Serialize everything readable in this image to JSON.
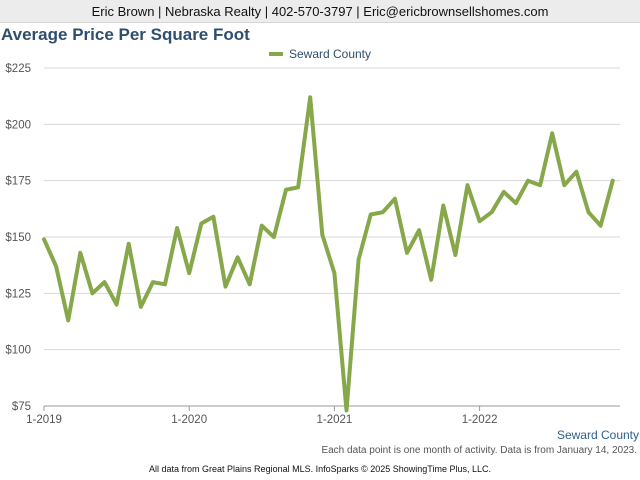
{
  "header": {
    "contact": "Eric Brown | Nebraska Realty | 402-570-3797 | Eric@ericbrownsellshomes.com"
  },
  "colors": {
    "series": "#86a84b",
    "title": "#2f4e6e"
  },
  "chart_data": {
    "type": "line",
    "title": "Average Price Per Square Foot",
    "xlabel": "",
    "ylabel": "",
    "ylim": [
      75,
      225
    ],
    "yticks": [
      75,
      100,
      125,
      150,
      175,
      200,
      225
    ],
    "ytick_labels": [
      "$75",
      "$100",
      "$125",
      "$150",
      "$175",
      "$200",
      "$225"
    ],
    "xticks": [
      "2019-01",
      "2020-01",
      "2021-01",
      "2022-01"
    ],
    "xtick_labels": [
      "1-2019",
      "1-2020",
      "1-2021",
      "1-2022"
    ],
    "legend_position": "top-center",
    "grid": true,
    "series": [
      {
        "name": "Seward County",
        "x": [
          "2019-01",
          "2019-02",
          "2019-03",
          "2019-04",
          "2019-05",
          "2019-06",
          "2019-07",
          "2019-08",
          "2019-09",
          "2019-10",
          "2019-11",
          "2019-12",
          "2020-01",
          "2020-02",
          "2020-03",
          "2020-04",
          "2020-05",
          "2020-06",
          "2020-07",
          "2020-08",
          "2020-09",
          "2020-10",
          "2020-11",
          "2020-12",
          "2021-01",
          "2021-02",
          "2021-03",
          "2021-04",
          "2021-05",
          "2021-06",
          "2021-07",
          "2021-08",
          "2021-09",
          "2021-10",
          "2021-11",
          "2021-12",
          "2022-01",
          "2022-02",
          "2022-03",
          "2022-04",
          "2022-05",
          "2022-06",
          "2022-07",
          "2022-08",
          "2022-09",
          "2022-10",
          "2022-11",
          "2022-12"
        ],
        "values": [
          149,
          137,
          113,
          143,
          125,
          130,
          120,
          147,
          119,
          130,
          129,
          154,
          134,
          156,
          159,
          128,
          141,
          129,
          155,
          150,
          171,
          172,
          212,
          151,
          134,
          73,
          140,
          160,
          161,
          167,
          143,
          153,
          131,
          164,
          142,
          173,
          157,
          161,
          170,
          165,
          175,
          173,
          196,
          173,
          179,
          161,
          155,
          175
        ]
      }
    ]
  },
  "annotations": {
    "series_label": "Seward County",
    "note": "Each data point is one month of activity. Data is from January 14, 2023.",
    "footer": "All data from Great Plains Regional MLS. InfoSparks © 2025 ShowingTime Plus, LLC."
  }
}
